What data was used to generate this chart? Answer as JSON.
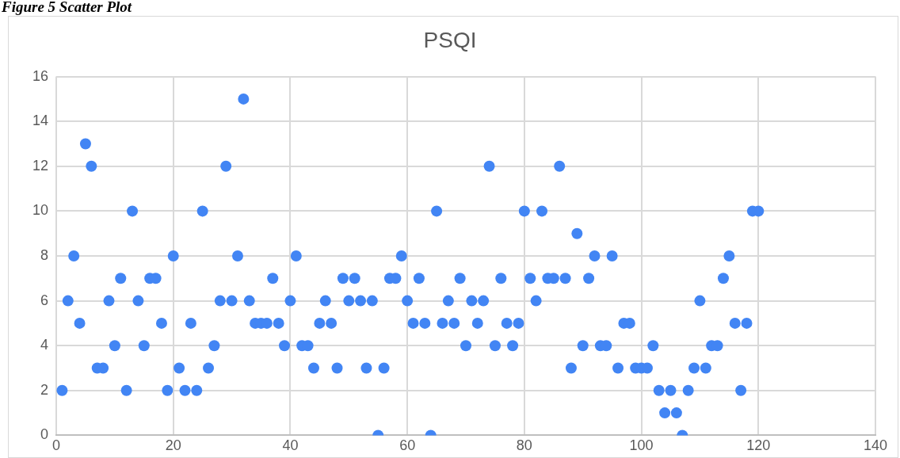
{
  "chart_data": {
    "type": "scatter",
    "title": "PSQI",
    "annotations": [
      "Figure 5 Scatter Plot"
    ],
    "x": [
      1,
      2,
      3,
      4,
      5,
      6,
      7,
      8,
      9,
      10,
      11,
      12,
      13,
      14,
      15,
      16,
      17,
      18,
      19,
      20,
      21,
      22,
      23,
      24,
      25,
      26,
      27,
      28,
      29,
      30,
      31,
      32,
      33,
      34,
      35,
      36,
      37,
      38,
      39,
      40,
      41,
      42,
      43,
      44,
      45,
      46,
      47,
      48,
      49,
      50,
      51,
      52,
      53,
      54,
      55,
      56,
      57,
      58,
      59,
      60,
      61,
      62,
      63,
      64,
      65,
      66,
      67,
      68,
      69,
      70,
      71,
      72,
      73,
      74,
      75,
      76,
      77,
      78,
      79,
      80,
      81,
      82,
      83,
      84,
      85,
      86,
      87,
      88,
      89,
      90,
      91,
      92,
      93,
      94,
      95,
      96,
      97,
      98,
      99,
      100,
      101,
      102,
      103,
      104,
      105,
      106,
      107,
      108,
      109,
      110,
      111,
      112,
      113,
      114,
      115,
      116,
      117,
      118,
      119,
      120
    ],
    "series": [
      {
        "color": "#4285f4",
        "values": [
          2,
          6,
          8,
          5,
          13,
          12,
          3,
          3,
          6,
          4,
          7,
          2,
          10,
          6,
          4,
          7,
          7,
          5,
          2,
          8,
          3,
          2,
          5,
          2,
          10,
          3,
          4,
          6,
          12,
          6,
          8,
          15,
          6,
          5,
          5,
          5,
          7,
          5,
          4,
          6,
          8,
          4,
          4,
          3,
          5,
          6,
          5,
          3,
          7,
          6,
          7,
          6,
          3,
          6,
          0,
          3,
          7,
          7,
          8,
          6,
          5,
          7,
          5,
          0,
          10,
          5,
          6,
          5,
          7,
          4,
          6,
          5,
          6,
          12,
          4,
          7,
          5,
          4,
          5,
          10,
          7,
          6,
          10,
          7,
          7,
          12,
          7,
          3,
          9,
          4,
          7,
          8,
          4,
          4,
          8,
          3,
          5,
          5,
          3,
          3,
          3,
          4,
          2,
          1,
          2,
          1,
          0,
          2,
          3,
          6,
          3,
          4,
          4,
          7,
          8,
          5,
          2,
          5,
          10,
          10
        ]
      }
    ],
    "xlim": [
      0,
      140
    ],
    "xticks": [
      0,
      20,
      40,
      60,
      80,
      100,
      120,
      140
    ],
    "ylim": [
      0,
      16
    ],
    "yticks": [
      0,
      2,
      4,
      6,
      8,
      10,
      12,
      14,
      16
    ],
    "grid": true,
    "legend": false,
    "marker": "circle"
  }
}
